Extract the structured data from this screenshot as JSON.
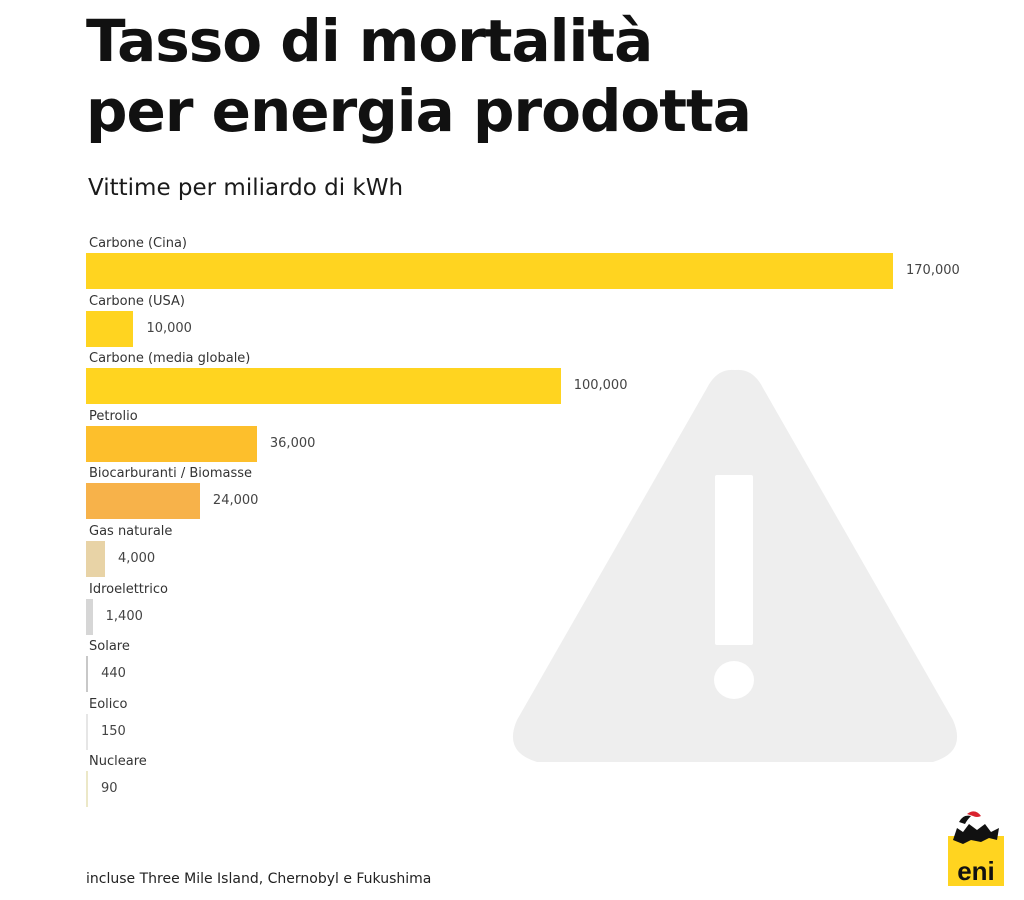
{
  "chart_data": {
    "type": "bar",
    "orientation": "horizontal",
    "title_lines": [
      "Tasso di mortalità",
      "per energia prodotta"
    ],
    "subtitle": "Vittime per miliardo di kWh",
    "categories": [
      "Carbone (Cina)",
      "Carbone (USA)",
      "Carbone (media globale)",
      "Petrolio",
      "Biocarburanti / Biomasse",
      "Gas naturale",
      "Idroelettrico",
      "Solare",
      "Eolico",
      "Nucleare"
    ],
    "values": [
      170000,
      10000,
      100000,
      36000,
      24000,
      4000,
      1400,
      440,
      150,
      90
    ],
    "value_labels": [
      "170,000",
      "10,000",
      "100,000",
      "36,000",
      "24,000",
      "4,000",
      "1,400",
      "440",
      "150",
      "90"
    ],
    "colors": [
      "#FFD420",
      "#FFD420",
      "#FFD420",
      "#FDBF2C",
      "#F7B24A",
      "#E8D3A6",
      "#D6D6D6",
      "#C8C8C8",
      "#E6E6E6",
      "#ECE8C8"
    ],
    "xlim": [
      0,
      170000
    ],
    "grid": false,
    "legend": "none"
  },
  "footnote": "incluse Three Mile Island, Chernobyl e Fukushima",
  "background_icon": "warning-triangle-icon",
  "logo": {
    "icon": "eni-dog-logo",
    "text": "eni",
    "color": "#FFD420"
  }
}
